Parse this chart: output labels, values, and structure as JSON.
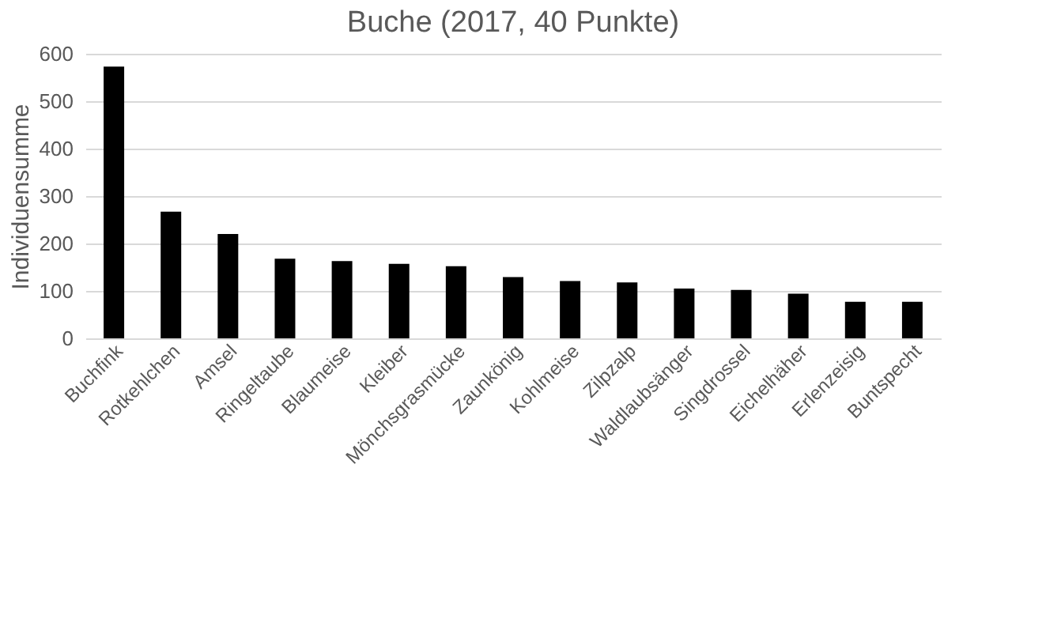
{
  "chart_data": {
    "type": "bar",
    "title": "Buche (2017, 40 Punkte)",
    "ylabel": "Individuensumme",
    "categories": [
      "Buchfink",
      "Rotkehlchen",
      "Amsel",
      "Ringeltaube",
      "Blaumeise",
      "Kleiber",
      "Mönchsgrasmücke",
      "Zaunkönig",
      "Kohlmeise",
      "Zilpzalp",
      "Waldlaubsänger",
      "Singdrossel",
      "Eichelhäher",
      "Erlenzeisig",
      "Buntspecht"
    ],
    "values": [
      573,
      267,
      220,
      168,
      163,
      157,
      152,
      129,
      121,
      118,
      105,
      102,
      94,
      77,
      77
    ],
    "color": "#000000",
    "ylim": [
      0,
      600
    ],
    "yticks": [
      0,
      100,
      200,
      300,
      400,
      500,
      600
    ],
    "grid": "y"
  }
}
